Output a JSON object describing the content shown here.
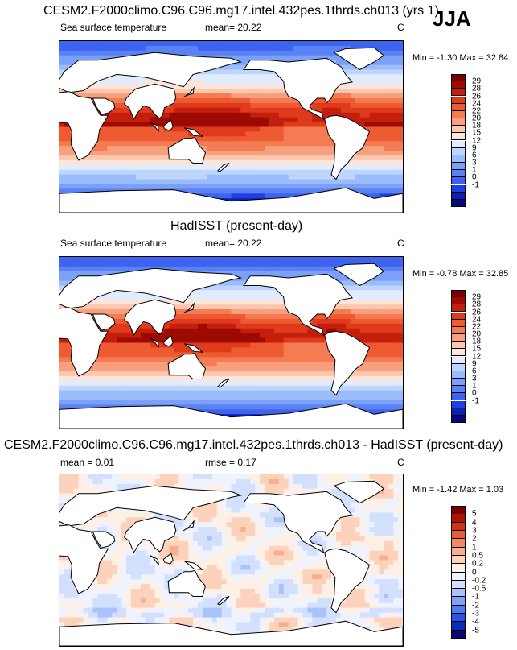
{
  "season": "JJA",
  "palette_sst": [
    "#08087a",
    "#0b1fb5",
    "#1f40e0",
    "#3d63f0",
    "#5b82f5",
    "#7aa0f7",
    "#9bbcfa",
    "#bfd6fc",
    "#e2ecff",
    "#fde6d9",
    "#fbc7ae",
    "#f8a07e",
    "#f47b52",
    "#ee5a32",
    "#e03a1c",
    "#c41f0c",
    "#9c0a02",
    "#760000"
  ],
  "palette_diff": [
    "#08087a",
    "#0b2ab8",
    "#2854e6",
    "#4f7bf2",
    "#7ea2f6",
    "#a9c2fa",
    "#d2e0fd",
    "#eef3ff",
    "#fff0e6",
    "#fdd2bd",
    "#f9ae92",
    "#f38664",
    "#e85c39",
    "#d0331a",
    "#a8160a",
    "#7a0000"
  ],
  "panel1": {
    "title": "CESM2.F2000climo.C96.C96.mg17.intel.432pes.1thrds.ch013 (yrs 1)",
    "variable": "Sea surface temperature",
    "mean": "mean=  20.22",
    "units": "C",
    "minmax": "Min =  -1.30 Max =  32.84",
    "colorbar_labels": [
      "29",
      "28",
      "26",
      "24",
      "22",
      "20",
      "18",
      "15",
      "12",
      "9",
      "6",
      "3",
      "1",
      "0",
      "-1"
    ]
  },
  "panel2": {
    "title": "HadISST (present-day)",
    "variable": "Sea surface temperature",
    "mean": "mean=  20.22",
    "units": "C",
    "minmax": "Min =  -0.78 Max =  32.85",
    "colorbar_labels": [
      "29",
      "28",
      "26",
      "24",
      "22",
      "20",
      "18",
      "15",
      "12",
      "9",
      "6",
      "3",
      "1",
      "0",
      "-1"
    ]
  },
  "panel3": {
    "title": "CESM2.F2000climo.C96.C96.mg17.intel.432pes.1thrds.ch013 - HadISST (present-day)",
    "mean": "mean =   0.01",
    "rmse": "rmse =   0.17",
    "units": "C",
    "minmax": "Min =  -1.42 Max =   1.03",
    "colorbar_labels": [
      "5",
      "4",
      "3",
      "2",
      "1",
      "0.5",
      "0.2",
      "0",
      "-0.2",
      "-0.5",
      "-1",
      "-2",
      "-3",
      "-4",
      "-5"
    ]
  }
}
